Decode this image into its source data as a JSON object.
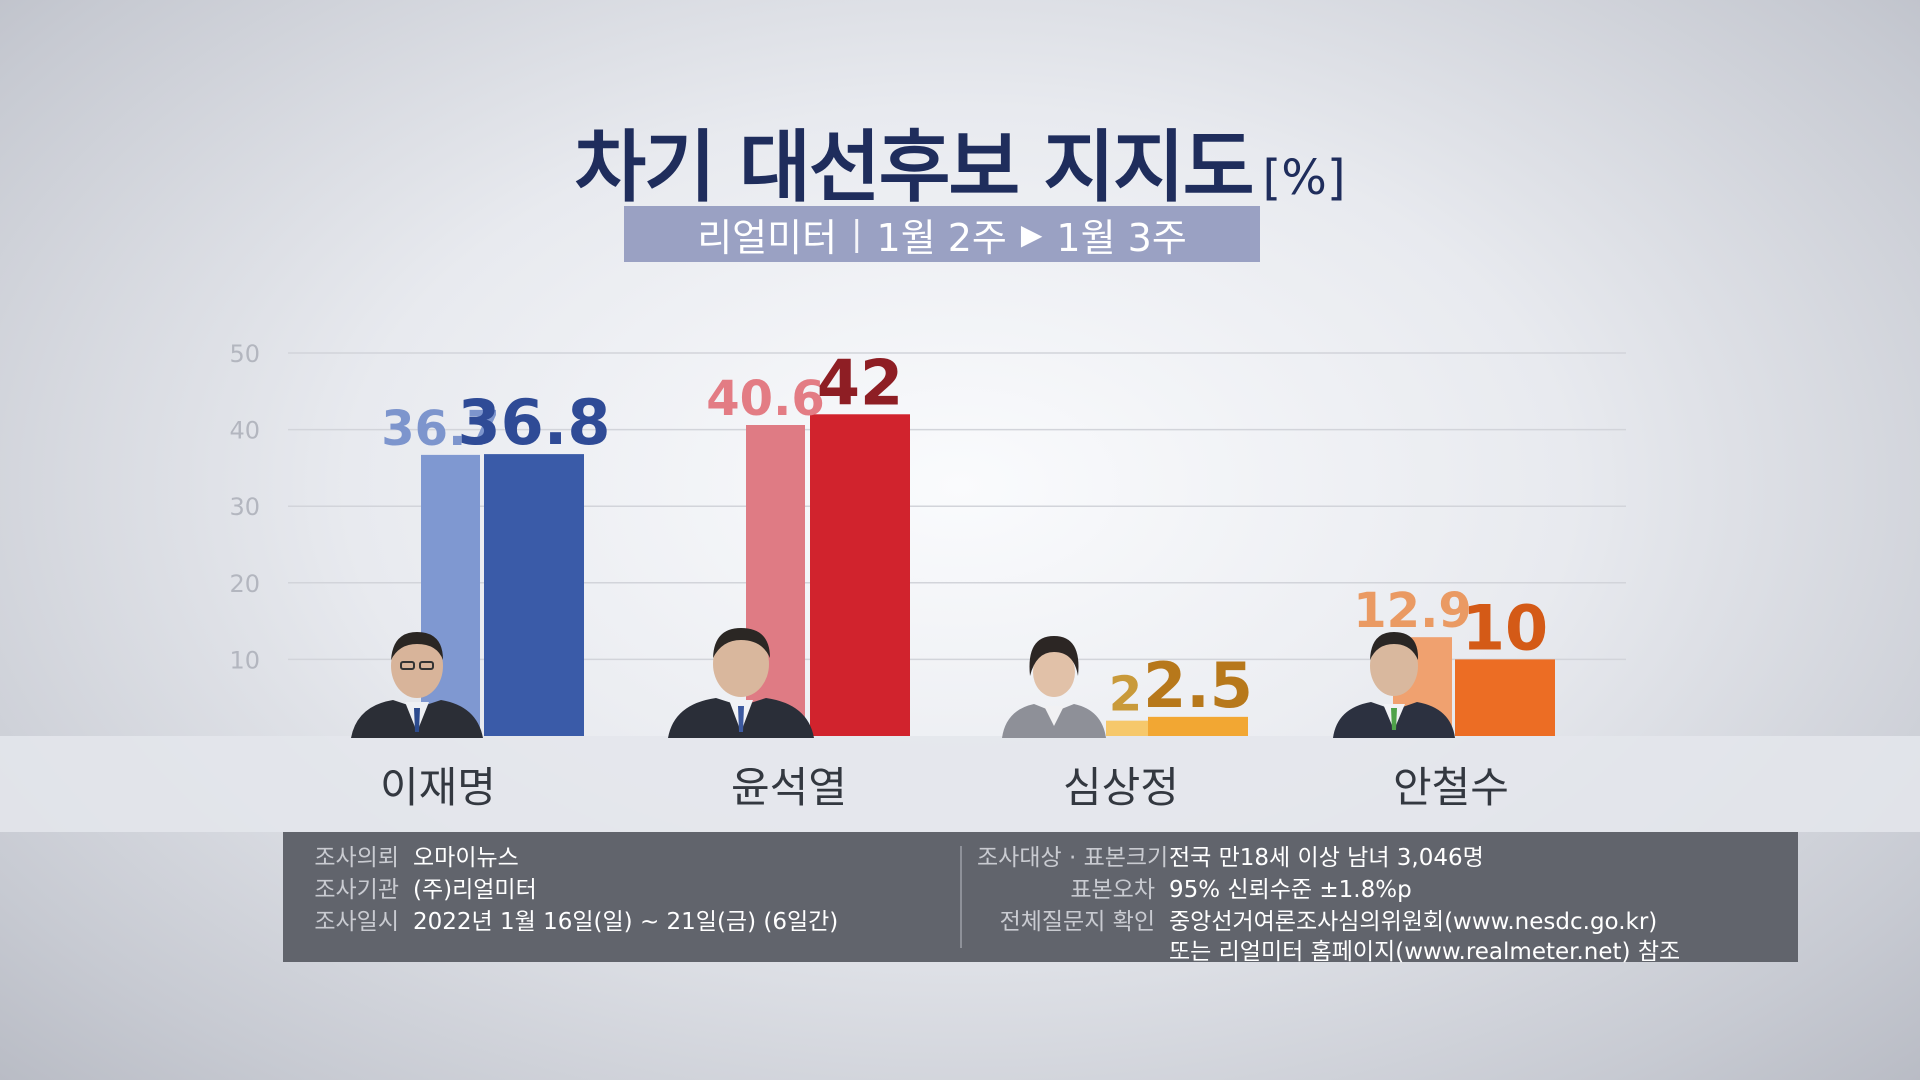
{
  "title": "차기 대선후보 지지도",
  "title_unit": "[%]",
  "subtitle": {
    "pollster": "리얼미터",
    "separator": "|",
    "period_prev": "1월 2주",
    "arrow": "▶",
    "period_curr": "1월 3주"
  },
  "chart_data": {
    "type": "bar",
    "title": "차기 대선후보 지지도",
    "unit": "[%]",
    "ylim": [
      0,
      50
    ],
    "yticks": [
      10,
      20,
      30,
      40,
      50
    ],
    "grid": true,
    "categories": [
      "이재명",
      "윤석열",
      "심상정",
      "안철수"
    ],
    "series": [
      {
        "name": "1월 2주",
        "values": [
          36.7,
          40.6,
          2,
          12.9
        ],
        "labels": [
          "36.7",
          "40.6",
          "2",
          "12.9"
        ]
      },
      {
        "name": "1월 3주",
        "values": [
          36.8,
          42,
          2.5,
          10
        ],
        "labels": [
          "36.8",
          "42",
          "2.5",
          "10"
        ]
      }
    ]
  },
  "colors": {
    "leejm": {
      "prev": "#7f98d1",
      "curr": "#3a5ba8",
      "prev_label": "#7d95cd",
      "curr_label": "#2f4b96"
    },
    "yoonsy": {
      "prev": "#df7b84",
      "curr": "#d1232d",
      "prev_label": "#e37c84",
      "curr_label": "#8e1e24"
    },
    "simsj": {
      "prev": "#f6c86b",
      "curr": "#f2a733",
      "prev_label": "#c99a3a",
      "curr_label": "#b7781b"
    },
    "ahncs": {
      "prev": "#f0a16f",
      "curr": "#ec6d24",
      "prev_label": "#ea9a63",
      "curr_label": "#d45a17"
    }
  },
  "info": {
    "left": [
      {
        "key": "조사의뢰",
        "value": "오마이뉴스"
      },
      {
        "key": "조사기관",
        "value": "(주)리얼미터"
      },
      {
        "key": "조사일시",
        "value": "2022년 1월 16일(일) ~ 21일(금) (6일간)"
      }
    ],
    "right": [
      {
        "key": "조사대상 · 표본크기",
        "value": "전국 만18세 이상 남녀 3,046명"
      },
      {
        "key": "표본오차",
        "value": "95% 신뢰수준 ±1.8%p"
      },
      {
        "key": "전체질문지 확인",
        "value": "중앙선거여론조사심의위원회(www.nesdc.go.kr)"
      },
      {
        "key": "",
        "value": "또는 리얼미터 홈페이지(www.realmeter.net) 참조"
      }
    ]
  }
}
